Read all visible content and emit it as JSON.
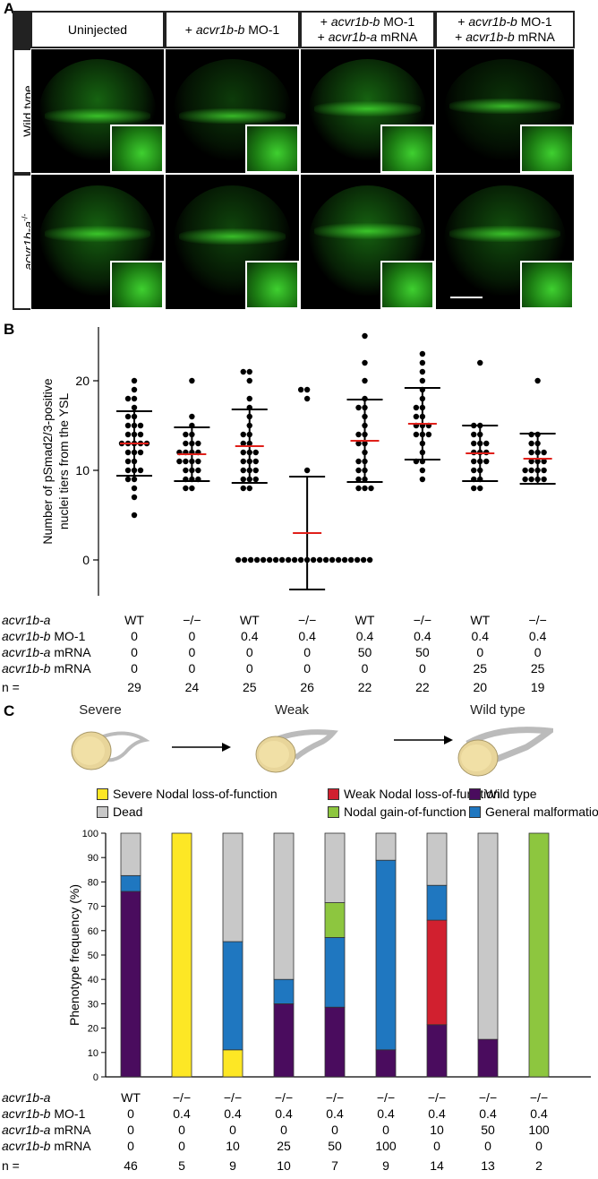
{
  "panel_a": {
    "label": "A",
    "columns": [
      {
        "prefix": "",
        "gene": "",
        "suffix": "Uninjected",
        "line2_prefix": "",
        "line2_gene": "",
        "line2_suffix": ""
      },
      {
        "prefix": "+ ",
        "gene": "acvr1b-b",
        "suffix": " MO-1",
        "line2_prefix": "",
        "line2_gene": "",
        "line2_suffix": ""
      },
      {
        "prefix": "+ ",
        "gene": "acvr1b-b",
        "suffix": " MO-1",
        "line2_prefix": "+ ",
        "line2_gene": "acvr1b-a",
        "line2_suffix": " mRNA"
      },
      {
        "prefix": "+ ",
        "gene": "acvr1b-b",
        "suffix": " MO-1",
        "line2_prefix": "+ ",
        "line2_gene": "acvr1b-b",
        "line2_suffix": " mRNA"
      }
    ],
    "rows": [
      {
        "label": "Wild type",
        "gene": "",
        "sup": ""
      },
      {
        "label": "",
        "gene": "acvr1b-a",
        "sup": "-/-"
      }
    ]
  },
  "panel_b": {
    "label": "B",
    "table_rows": [
      {
        "gene": "acvr1b-a",
        "suffix": "",
        "values": [
          "WT",
          "−/−",
          "WT",
          "−/−",
          "WT",
          "−/−",
          "WT",
          "−/−"
        ]
      },
      {
        "gene": "acvr1b-b",
        "suffix": " MO-1",
        "values": [
          "0",
          "0",
          "0.4",
          "0.4",
          "0.4",
          "0.4",
          "0.4",
          "0.4"
        ]
      },
      {
        "gene": "acvr1b-a",
        "suffix": " mRNA",
        "values": [
          "0",
          "0",
          "0",
          "0",
          "50",
          "50",
          "0",
          "0"
        ]
      },
      {
        "gene": "acvr1b-b",
        "suffix": " mRNA",
        "values": [
          "0",
          "0",
          "0",
          "0",
          "0",
          "0",
          "25",
          "25"
        ]
      },
      {
        "gene": "",
        "suffix": "n =",
        "values": [
          "29",
          "24",
          "25",
          "26",
          "22",
          "22",
          "20",
          "19"
        ]
      }
    ]
  },
  "panel_c": {
    "label": "C",
    "embryos": [
      "Severe",
      "Weak",
      "Wild type"
    ],
    "table_rows": [
      {
        "gene": "acvr1b-a",
        "suffix": "",
        "values": [
          "WT",
          "−/−",
          "−/−",
          "−/−",
          "−/−",
          "−/−",
          "−/−",
          "−/−",
          "−/−"
        ]
      },
      {
        "gene": "acvr1b-b",
        "suffix": " MO-1",
        "values": [
          "0",
          "0.4",
          "0.4",
          "0.4",
          "0.4",
          "0.4",
          "0.4",
          "0.4",
          "0.4"
        ]
      },
      {
        "gene": "acvr1b-a",
        "suffix": " mRNA",
        "values": [
          "0",
          "0",
          "0",
          "0",
          "0",
          "0",
          "10",
          "50",
          "100"
        ]
      },
      {
        "gene": "acvr1b-b",
        "suffix": " mRNA",
        "values": [
          "0",
          "0",
          "10",
          "25",
          "50",
          "100",
          "0",
          "0",
          "0"
        ]
      },
      {
        "gene": "",
        "suffix": "n =",
        "values": [
          "46",
          "5",
          "9",
          "10",
          "7",
          "9",
          "14",
          "13",
          "2"
        ]
      }
    ]
  },
  "colors": {
    "severe": "#fde725",
    "weak": "#d1202f",
    "wild_type": "#4a0c5e",
    "dead": "#c8c8c8",
    "gain": "#8dc63f",
    "malformation": "#1f77c0",
    "mean_line": "#e0201a"
  },
  "chart_data": [
    {
      "type": "scatter",
      "ylabel": "Number of pSmad2/3-positive\nnuclei tiers from the YSL",
      "ylim": [
        -4,
        26
      ],
      "yticks": [
        0,
        10,
        20
      ],
      "groups": [
        {
          "mean": 13.0,
          "sd_low": 9.4,
          "sd_high": 16.6,
          "points": [
            20,
            19,
            18,
            18,
            17,
            16,
            16,
            15,
            15,
            15,
            14,
            14,
            14,
            13,
            13,
            13,
            13,
            13,
            12,
            12,
            12,
            11,
            11,
            10,
            10,
            10,
            9,
            9,
            8,
            7,
            5
          ]
        },
        {
          "mean": 11.8,
          "sd_low": 8.8,
          "sd_high": 14.8,
          "points": [
            20,
            16,
            15,
            14,
            14,
            13,
            13,
            13,
            12,
            12,
            12,
            12,
            11,
            11,
            11,
            11,
            10,
            10,
            10,
            9,
            9,
            9,
            8,
            8
          ]
        },
        {
          "mean": 12.7,
          "sd_low": 8.6,
          "sd_high": 16.8,
          "points": [
            21,
            21,
            20,
            18,
            17,
            16,
            15,
            14,
            14,
            13,
            13,
            12,
            12,
            12,
            11,
            11,
            11,
            10,
            10,
            10,
            9,
            9,
            9,
            8,
            8
          ]
        },
        {
          "mean": 3.0,
          "sd_low": -3.3,
          "sd_high": 9.3,
          "points": [
            19,
            19,
            18,
            10,
            0,
            0,
            0,
            0,
            0,
            0,
            0,
            0,
            0,
            0,
            0,
            0,
            0,
            0,
            0,
            0,
            0,
            0,
            0,
            0,
            0,
            0
          ]
        },
        {
          "mean": 13.3,
          "sd_low": 8.7,
          "sd_high": 17.9,
          "points": [
            25,
            22,
            20,
            18,
            17,
            17,
            16,
            15,
            14,
            14,
            13,
            13,
            12,
            11,
            11,
            10,
            10,
            9,
            9,
            8,
            8,
            8
          ]
        },
        {
          "mean": 15.2,
          "sd_low": 11.2,
          "sd_high": 19.2,
          "points": [
            23,
            22,
            21,
            20,
            19,
            18,
            17,
            17,
            16,
            16,
            15,
            15,
            15,
            14,
            14,
            14,
            13,
            12,
            11,
            11,
            10,
            9
          ]
        },
        {
          "mean": 11.9,
          "sd_low": 8.8,
          "sd_high": 15.0,
          "points": [
            22,
            15,
            15,
            14,
            14,
            13,
            13,
            13,
            12,
            12,
            12,
            11,
            11,
            11,
            10,
            10,
            9,
            9,
            8,
            8
          ]
        },
        {
          "mean": 11.3,
          "sd_low": 8.5,
          "sd_high": 14.1,
          "points": [
            20,
            14,
            14,
            13,
            13,
            12,
            12,
            12,
            11,
            11,
            11,
            10,
            10,
            10,
            10,
            9,
            9,
            9,
            9
          ]
        }
      ]
    },
    {
      "type": "bar",
      "stacked": true,
      "ylabel": "Phenotype frequency (%)",
      "ylim": [
        0,
        100
      ],
      "yticks": [
        0,
        10,
        20,
        30,
        40,
        50,
        60,
        70,
        80,
        90,
        100
      ],
      "legend": [
        "Severe Nodal loss-of-function",
        "Weak Nodal loss-of-function",
        "Wild type",
        "Dead",
        "Nodal gain-of-function",
        "General malformation"
      ],
      "series": [
        {
          "name": "Severe Nodal loss-of-function",
          "values": [
            0,
            100,
            11.1,
            0,
            0,
            0,
            0,
            0,
            0
          ]
        },
        {
          "name": "Wild type",
          "values": [
            76.1,
            0,
            0,
            30,
            28.6,
            11.1,
            21.4,
            15.4,
            0
          ]
        },
        {
          "name": "Weak Nodal loss-of-function",
          "values": [
            0,
            0,
            0,
            0,
            0,
            0,
            42.9,
            0,
            0
          ]
        },
        {
          "name": "General malformation",
          "values": [
            6.5,
            0,
            44.4,
            10,
            28.6,
            77.8,
            14.3,
            0,
            0
          ]
        },
        {
          "name": "Nodal gain-of-function",
          "values": [
            0,
            0,
            0,
            0,
            14.3,
            0,
            0,
            0,
            100
          ]
        },
        {
          "name": "Dead",
          "values": [
            17.4,
            0,
            44.5,
            60,
            28.5,
            11.1,
            21.4,
            84.6,
            0
          ]
        }
      ]
    }
  ]
}
